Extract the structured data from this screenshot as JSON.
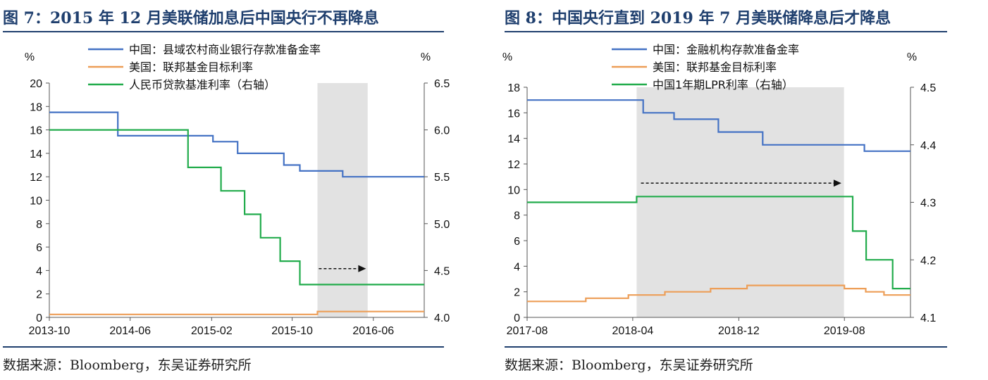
{
  "panels": [
    {
      "title": "图 7：2015 年 12 月美联储加息后中国央行不再降息",
      "source": "数据来源：Bloomberg，东吴证券研究所"
    },
    {
      "title": "图 8：中国央行直到 2019 年 7 月美联储降息后才降息",
      "source": "数据来源：Bloomberg，东吴证券研究所"
    }
  ],
  "chart_data": [
    {
      "type": "line",
      "left_axis_unit": "%",
      "right_axis_unit": "%",
      "x_tick_labels": [
        "2013-10",
        "2014-06",
        "2015-02",
        "2015-10",
        "2016-06"
      ],
      "x_ticks": [
        "2013-10-01",
        "2014-06-01",
        "2015-02-01",
        "2015-10-01",
        "2016-06-01"
      ],
      "x_range": [
        "2013-10-01",
        "2016-11-01"
      ],
      "ylim_left": [
        0,
        20
      ],
      "ylim_right": [
        4.0,
        6.5
      ],
      "y_ticks_left": [
        "0",
        "2",
        "4",
        "6",
        "8",
        "10",
        "12",
        "14",
        "16",
        "18",
        "20"
      ],
      "y_ticks_right": [
        "4.0",
        "4.5",
        "5.0",
        "5.5",
        "6.0",
        "6.5"
      ],
      "shaded_range": [
        "2015-12-16",
        "2016-05-15"
      ],
      "arrow": {
        "from": "2015-12-20",
        "to": "2016-05-10",
        "y_right": 4.52
      },
      "legend": [
        "中国：县域农村商业银行存款准备金率",
        "美国：联邦基金目标利率",
        "人民币贷款基准利率（右轴）"
      ],
      "series": [
        {
          "name": "中国：县域农村商业银行存款准备金率",
          "axis": "left",
          "color": "#4472c4",
          "step": true,
          "points": [
            [
              "2013-10-01",
              17.5
            ],
            [
              "2014-04-25",
              15.5
            ],
            [
              "2015-02-05",
              15.0
            ],
            [
              "2015-04-20",
              14.0
            ],
            [
              "2015-09-06",
              13.0
            ],
            [
              "2015-10-24",
              12.5
            ],
            [
              "2016-03-01",
              12.0
            ],
            [
              "2016-11-01",
              12.0
            ]
          ]
        },
        {
          "name": "美国：联邦基金目标利率",
          "axis": "left",
          "color": "#ed9e57",
          "step": true,
          "points": [
            [
              "2013-10-01",
              0.25
            ],
            [
              "2015-12-16",
              0.5
            ],
            [
              "2016-11-01",
              0.5
            ]
          ]
        },
        {
          "name": "人民币贷款基准利率（右轴）",
          "axis": "right",
          "color": "#22ac4c",
          "step": true,
          "points": [
            [
              "2013-10-01",
              6.0
            ],
            [
              "2014-11-22",
              5.6
            ],
            [
              "2015-03-01",
              5.35
            ],
            [
              "2015-05-11",
              5.1
            ],
            [
              "2015-06-28",
              4.85
            ],
            [
              "2015-08-26",
              4.6
            ],
            [
              "2015-10-24",
              4.35
            ],
            [
              "2016-11-01",
              4.35
            ]
          ]
        }
      ]
    },
    {
      "type": "line",
      "left_axis_unit": "%",
      "right_axis_unit": "%",
      "x_tick_labels": [
        "2017-08",
        "2018-04",
        "2018-12",
        "2019-08"
      ],
      "x_ticks": [
        "2017-08-01",
        "2018-04-01",
        "2018-12-01",
        "2019-08-01"
      ],
      "x_range": [
        "2017-08-01",
        "2019-12-31"
      ],
      "ylim_left": [
        0,
        18
      ],
      "ylim_right": [
        4.1,
        4.5
      ],
      "y_ticks_left": [
        "0",
        "2",
        "4",
        "6",
        "8",
        "10",
        "12",
        "14",
        "16",
        "18"
      ],
      "y_ticks_right": [
        "4.1",
        "4.2",
        "4.3",
        "4.4",
        "4.5"
      ],
      "shaded_range": [
        "2018-04-10",
        "2019-07-31"
      ],
      "arrow": {
        "from": "2018-04-20",
        "to": "2019-07-25",
        "y_left": 10.5
      },
      "legend": [
        "中国：金融机构存款准备金率",
        "美国：联邦基金目标利率",
        "中国1年期LPR利率（右轴）"
      ],
      "series": [
        {
          "name": "中国：金融机构存款准备金率",
          "axis": "left",
          "color": "#4472c4",
          "step": true,
          "points": [
            [
              "2017-08-01",
              17.0
            ],
            [
              "2018-04-25",
              16.0
            ],
            [
              "2018-07-05",
              15.5
            ],
            [
              "2018-10-15",
              14.5
            ],
            [
              "2019-01-25",
              13.5
            ],
            [
              "2019-09-16",
              13.0
            ],
            [
              "2019-12-31",
              13.0
            ]
          ]
        },
        {
          "name": "美国：联邦基金目标利率",
          "axis": "left",
          "color": "#ed9e57",
          "step": true,
          "points": [
            [
              "2017-08-01",
              1.25
            ],
            [
              "2017-12-14",
              1.5
            ],
            [
              "2018-03-22",
              1.75
            ],
            [
              "2018-06-14",
              2.0
            ],
            [
              "2018-09-27",
              2.25
            ],
            [
              "2018-12-20",
              2.5
            ],
            [
              "2019-08-01",
              2.25
            ],
            [
              "2019-09-19",
              2.0
            ],
            [
              "2019-10-31",
              1.75
            ],
            [
              "2019-12-31",
              1.75
            ]
          ]
        },
        {
          "name": "中国1年期LPR利率（右轴）",
          "axis": "right",
          "color": "#22ac4c",
          "step": true,
          "points": [
            [
              "2017-08-01",
              4.3
            ],
            [
              "2018-04-10",
              4.31
            ],
            [
              "2019-08-20",
              4.25
            ],
            [
              "2019-09-20",
              4.2
            ],
            [
              "2019-11-20",
              4.15
            ],
            [
              "2019-12-31",
              4.15
            ]
          ]
        }
      ]
    }
  ]
}
